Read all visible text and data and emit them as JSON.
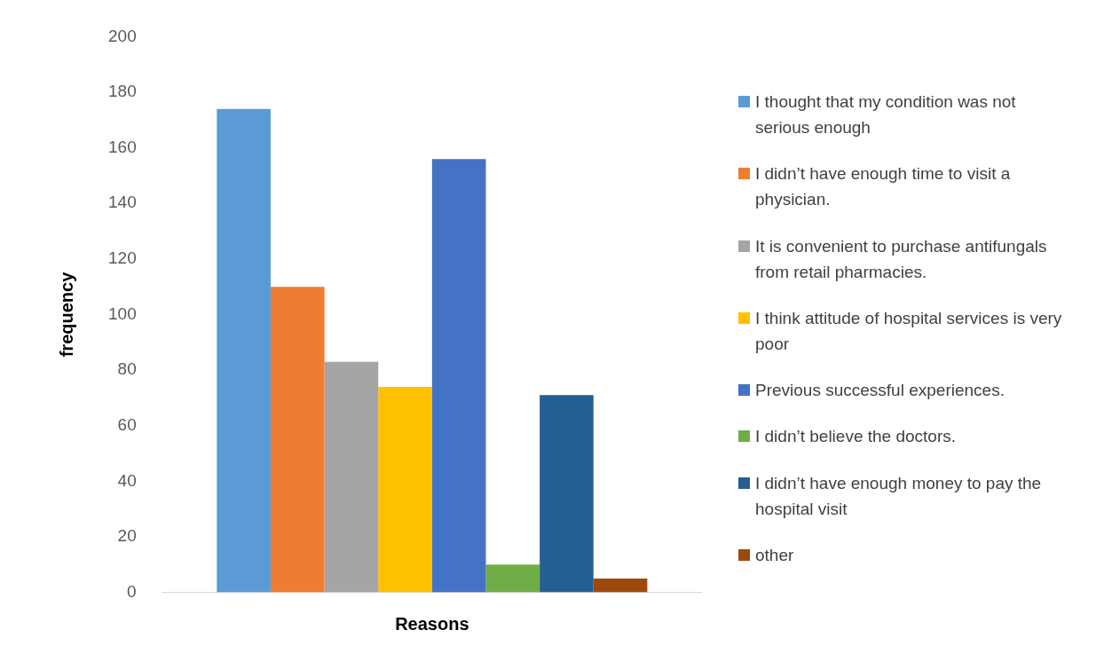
{
  "chart_data": {
    "type": "bar",
    "xlabel": "Reasons",
    "ylabel": "frequency",
    "categories": [
      null
    ],
    "ylim": [
      0,
      200
    ],
    "yticks": [
      0,
      20,
      40,
      60,
      80,
      100,
      120,
      140,
      160,
      180,
      200
    ],
    "grid": false,
    "legend": "right",
    "series": [
      {
        "name": "I thought that my condition was not serious enough",
        "color": "#5b9bd5",
        "values": [
          174
        ]
      },
      {
        "name": "I didn’t have enough time to visit a physician.",
        "color": "#ed7d31",
        "values": [
          110
        ]
      },
      {
        "name": "It is convenient to purchase antifungals from retail pharmacies.",
        "color": "#a5a5a5",
        "values": [
          83
        ]
      },
      {
        "name": "I think attitude of hospital services is very poor",
        "color": "#ffc000",
        "values": [
          74
        ]
      },
      {
        "name": "Previous successful experiences.",
        "color": "#4472c4",
        "values": [
          156
        ]
      },
      {
        "name": "I didn’t believe the doctors.",
        "color": "#70ad47",
        "values": [
          10
        ]
      },
      {
        "name": "I didn’t have enough money to pay the hospital visit",
        "color": "#255e91",
        "values": [
          71
        ]
      },
      {
        "name": "other",
        "color": "#9e480e",
        "values": [
          5
        ]
      }
    ]
  }
}
